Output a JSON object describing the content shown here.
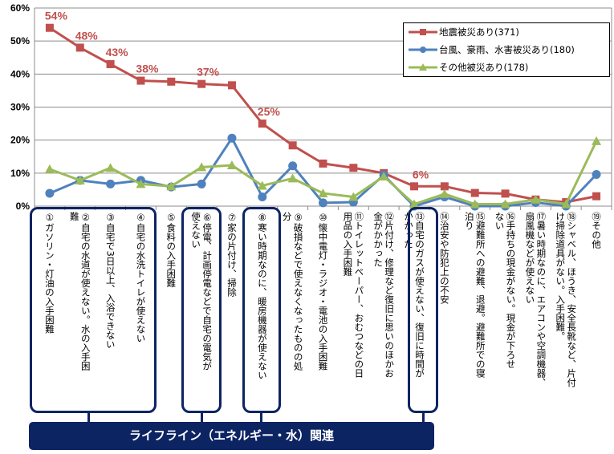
{
  "chart_data": {
    "type": "line",
    "title": "",
    "xlabel": "",
    "ylabel": "",
    "ylim": [
      0,
      60
    ],
    "yticks": [
      "0%",
      "10%",
      "20%",
      "30%",
      "40%",
      "50%",
      "60%"
    ],
    "grid": true,
    "legend_position": "top-right",
    "categories": [
      "①ガソリン・灯油の入手困難",
      "②自宅の水道が使えない。水の入手困難",
      "③自宅で3日以上、入浴できない",
      "④自宅の水洗トイレが使えない",
      "⑤食料の入手困難",
      "⑥停電、計画停電などで自宅の電気が使えない",
      "⑦家の片付け、掃除",
      "⑧寒い時期なのに、暖房機器が使えない",
      "⑨破損などで使えなくなったものの処分",
      "⑩懐中電灯・ラジオ・電池の入手困難",
      "⑪トイレットペーパー、おむつなどの日用品の入手困難",
      "⑫片付け、修理など復旧に思いのほかお金がかかった",
      "⑬自宅のガスが使えない、復旧に時間がかかった",
      "⑭治安や防犯上の不安",
      "⑮避難所への避難、退避。避難所での寝泊り",
      "⑯手持ちの現金がない。現金が下ろせない",
      "⑰暑い時期なのに、エアコンや空調機器、扇風機などが使えない",
      "⑱シャベル、ほうき、安全長靴など、片付け掃除道具がない。入手困難。",
      "⑲その他"
    ],
    "series": [
      {
        "name": "地震被災あり(371)",
        "color": "#c0504d",
        "marker": "square",
        "values": [
          54,
          48,
          43,
          38,
          37.7,
          37,
          36.6,
          25,
          18.4,
          12.9,
          11.6,
          10,
          6,
          6,
          4,
          3.8,
          2,
          1.2,
          3
        ],
        "data_labels": {
          "0": "54%",
          "1": "48%",
          "2": "43%",
          "3": "38%",
          "5": "37%",
          "7": "25%",
          "12": "6%"
        }
      },
      {
        "name": "台風、豪雨、水害被災あり(180)",
        "color": "#4f81bd",
        "marker": "circle",
        "values": [
          3.9,
          7.8,
          6.7,
          7.8,
          5.8,
          6.7,
          20.6,
          2.8,
          12.2,
          1,
          1.2,
          9.4,
          0,
          2.8,
          0,
          0,
          1.1,
          0,
          9.6
        ]
      },
      {
        "name": "その他被災あり(178)",
        "color": "#9bbb59",
        "marker": "triangle",
        "values": [
          11.2,
          7.8,
          11.6,
          6.7,
          6,
          11.8,
          12.4,
          6.2,
          8.4,
          3.9,
          2.8,
          9,
          0.6,
          3.7,
          0.6,
          0.6,
          2,
          0.6,
          19.7
        ]
      }
    ]
  },
  "category_labels": [
    "①ガソリン・灯油の入手困難",
    "②自宅の水道が使えない。水の入手困\n難",
    "③自宅で3日以上、入浴できない",
    "④自宅の水洗トイレが使えない",
    "⑤食料の入手困難",
    "⑥停電、計画停電などで自宅の電気が\n使えない",
    "⑦家の片付け、掃除",
    "⑧寒い時期なのに、暖房機器が使えない",
    "⑨破損などで使えなくなったものの処\n分",
    "⑩懐中電灯・ラジオ・電池の入手困難",
    "⑪トイレットペーパー、おむつなどの日\n用品の入手困難",
    "⑫片付け、修理など復旧に思いのほかお\n金がかかった",
    "⑬自宅のガスが使えない、復旧に時間が\nかかった",
    "⑭治安や防犯上の不安",
    "⑮避難所への避難、退避。避難所での寝\n泊り",
    "⑯手持ちの現金がない。現金が下ろせ\nない",
    "⑰暑い時期なのに、エアコンや空調機器、\n扇風機などが使えない",
    "⑱シャベル、ほうき、安全長靴など、片付\nけ掃除道具がない。入手困難。",
    "⑲その他"
  ],
  "legend": {
    "items": [
      "地震被災あり(371)",
      "台風、豪雨、水害被災あり(180)",
      "その他被災あり(178)"
    ]
  },
  "banner": {
    "label": "ライフライン（エネルギー・水）関連"
  }
}
